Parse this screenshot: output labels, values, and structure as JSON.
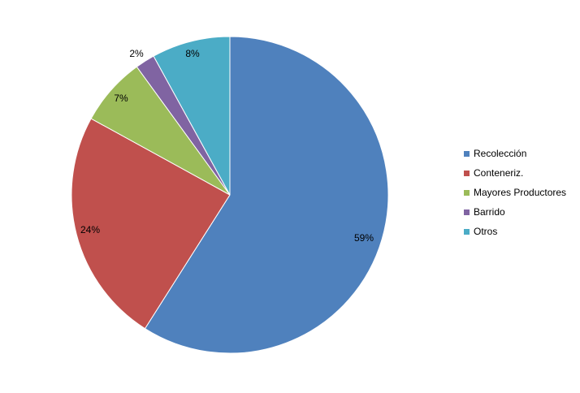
{
  "chart_data": {
    "type": "pie",
    "title": "",
    "legend_position": "right",
    "start_angle_deg": 0,
    "direction": "clockwise",
    "categories": [
      "Recolección",
      "Conteneriz.",
      "Mayores Productores",
      "Barrido",
      "Otros"
    ],
    "values": [
      59,
      24,
      7,
      2,
      8
    ],
    "data_labels": [
      "59%",
      "24%",
      "7%",
      "2%",
      "8%"
    ],
    "colors": [
      "#4F81BD",
      "#C0504D",
      "#9BBB59",
      "#8064A2",
      "#4BACC6"
    ]
  }
}
